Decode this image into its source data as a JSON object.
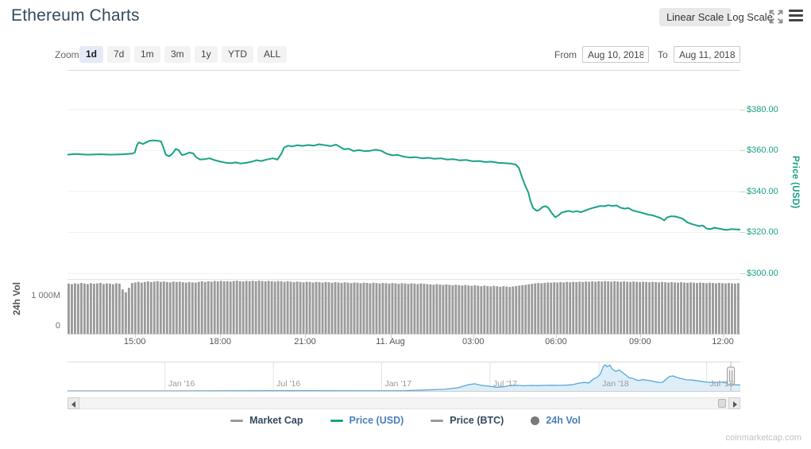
{
  "header": {
    "title": "Ethereum Charts",
    "linear_scale_label": "Linear Scale",
    "log_scale_label": "Log Scale"
  },
  "toolbar": {
    "zoom_label": "Zoom",
    "zoom_buttons": [
      {
        "label": "1d",
        "active": true
      },
      {
        "label": "7d",
        "active": false
      },
      {
        "label": "1m",
        "active": false
      },
      {
        "label": "3m",
        "active": false
      },
      {
        "label": "1y",
        "active": false
      },
      {
        "label": "YTD",
        "active": false
      },
      {
        "label": "ALL",
        "active": false
      }
    ],
    "from_label": "From",
    "from_value": "Aug 10, 2018",
    "to_label": "To",
    "to_value": "Aug 11, 2018"
  },
  "colors": {
    "price_line": "#18a286",
    "price_axis_text": "#16a085",
    "volume_bar": "#9b9b9b",
    "nav_line": "#58a7d8",
    "nav_fill": "#ddeef9",
    "grid": "#f2f2f2",
    "legend_active_text": "#4a7ebf",
    "legend_inactive_text": "#34495e",
    "title_text": "#34495e"
  },
  "chart_data": [
    {
      "type": "line",
      "name": "Price (USD)",
      "axis_title": "Price (USD)",
      "color": "#18a286",
      "ylim": [
        299.6,
        399.4
      ],
      "y_ticks": [
        {
          "value": 380,
          "label": "$380.00"
        },
        {
          "value": 360,
          "label": "$360.00"
        },
        {
          "value": 340,
          "label": "$340.00"
        },
        {
          "value": 320,
          "label": "$320.00"
        },
        {
          "value": 300,
          "label": "$300.00"
        }
      ],
      "x_ticks": [
        {
          "f": 0.1,
          "label": "15:00"
        },
        {
          "f": 0.227,
          "label": "18:00"
        },
        {
          "f": 0.353,
          "label": "21:00"
        },
        {
          "f": 0.48,
          "label": "11. Aug"
        },
        {
          "f": 0.603,
          "label": "03:00"
        },
        {
          "f": 0.726,
          "label": "06:00"
        },
        {
          "f": 0.851,
          "label": "09:00"
        },
        {
          "f": 0.974,
          "label": "12:00"
        }
      ],
      "points": [
        [
          0.0,
          358.0
        ],
        [
          0.012,
          358.3
        ],
        [
          0.03,
          358.0
        ],
        [
          0.047,
          358.2
        ],
        [
          0.065,
          358.0
        ],
        [
          0.083,
          358.2
        ],
        [
          0.096,
          358.5
        ],
        [
          0.1,
          359.0
        ],
        [
          0.103,
          362.5
        ],
        [
          0.106,
          364.0
        ],
        [
          0.112,
          363.2
        ],
        [
          0.117,
          364.0
        ],
        [
          0.122,
          364.8
        ],
        [
          0.128,
          365.0
        ],
        [
          0.133,
          364.8
        ],
        [
          0.139,
          364.5
        ],
        [
          0.143,
          361.0
        ],
        [
          0.146,
          358.0
        ],
        [
          0.151,
          357.2
        ],
        [
          0.156,
          358.5
        ],
        [
          0.161,
          360.8
        ],
        [
          0.165,
          360.2
        ],
        [
          0.17,
          357.8
        ],
        [
          0.175,
          358.2
        ],
        [
          0.181,
          359.0
        ],
        [
          0.187,
          358.6
        ],
        [
          0.191,
          356.8
        ],
        [
          0.197,
          355.6
        ],
        [
          0.204,
          355.8
        ],
        [
          0.211,
          356.2
        ],
        [
          0.218,
          355.4
        ],
        [
          0.227,
          354.6
        ],
        [
          0.235,
          354.1
        ],
        [
          0.243,
          353.8
        ],
        [
          0.25,
          354.2
        ],
        [
          0.257,
          353.7
        ],
        [
          0.266,
          354.0
        ],
        [
          0.274,
          354.6
        ],
        [
          0.281,
          355.3
        ],
        [
          0.288,
          354.9
        ],
        [
          0.296,
          355.6
        ],
        [
          0.305,
          356.2
        ],
        [
          0.312,
          355.6
        ],
        [
          0.318,
          358.5
        ],
        [
          0.322,
          361.5
        ],
        [
          0.328,
          362.4
        ],
        [
          0.334,
          362.0
        ],
        [
          0.341,
          362.6
        ],
        [
          0.349,
          362.3
        ],
        [
          0.358,
          362.7
        ],
        [
          0.366,
          362.4
        ],
        [
          0.374,
          363.1
        ],
        [
          0.383,
          362.6
        ],
        [
          0.391,
          362.2
        ],
        [
          0.399,
          362.9
        ],
        [
          0.405,
          361.8
        ],
        [
          0.411,
          360.6
        ],
        [
          0.418,
          360.9
        ],
        [
          0.425,
          359.8
        ],
        [
          0.433,
          360.2
        ],
        [
          0.442,
          359.7
        ],
        [
          0.45,
          359.9
        ],
        [
          0.458,
          360.4
        ],
        [
          0.466,
          359.9
        ],
        [
          0.475,
          358.4
        ],
        [
          0.483,
          357.7
        ],
        [
          0.491,
          357.9
        ],
        [
          0.499,
          357.1
        ],
        [
          0.508,
          356.6
        ],
        [
          0.517,
          356.8
        ],
        [
          0.527,
          356.2
        ],
        [
          0.536,
          356.5
        ],
        [
          0.545,
          356.0
        ],
        [
          0.555,
          356.2
        ],
        [
          0.564,
          355.6
        ],
        [
          0.574,
          355.8
        ],
        [
          0.583,
          355.2
        ],
        [
          0.593,
          355.4
        ],
        [
          0.602,
          354.8
        ],
        [
          0.612,
          354.9
        ],
        [
          0.621,
          354.4
        ],
        [
          0.63,
          354.6
        ],
        [
          0.64,
          354.0
        ],
        [
          0.649,
          353.9
        ],
        [
          0.659,
          353.6
        ],
        [
          0.666,
          353.2
        ],
        [
          0.671,
          351.5
        ],
        [
          0.675,
          347.5
        ],
        [
          0.68,
          343.0
        ],
        [
          0.685,
          339.5
        ],
        [
          0.688,
          335.5
        ],
        [
          0.692,
          332.0
        ],
        [
          0.697,
          330.6
        ],
        [
          0.701,
          330.9
        ],
        [
          0.706,
          332.4
        ],
        [
          0.711,
          332.8
        ],
        [
          0.715,
          331.9
        ],
        [
          0.72,
          329.4
        ],
        [
          0.725,
          327.4
        ],
        [
          0.73,
          328.4
        ],
        [
          0.734,
          329.6
        ],
        [
          0.739,
          330.1
        ],
        [
          0.745,
          330.5
        ],
        [
          0.751,
          330.0
        ],
        [
          0.757,
          330.4
        ],
        [
          0.763,
          329.9
        ],
        [
          0.769,
          330.6
        ],
        [
          0.774,
          331.3
        ],
        [
          0.78,
          331.9
        ],
        [
          0.786,
          332.4
        ],
        [
          0.792,
          332.9
        ],
        [
          0.798,
          332.8
        ],
        [
          0.804,
          333.3
        ],
        [
          0.81,
          332.9
        ],
        [
          0.816,
          333.2
        ],
        [
          0.822,
          332.1
        ],
        [
          0.828,
          331.6
        ],
        [
          0.834,
          331.9
        ],
        [
          0.839,
          330.9
        ],
        [
          0.845,
          330.3
        ],
        [
          0.851,
          329.8
        ],
        [
          0.857,
          329.3
        ],
        [
          0.863,
          328.7
        ],
        [
          0.869,
          328.4
        ],
        [
          0.875,
          327.8
        ],
        [
          0.881,
          327.1
        ],
        [
          0.887,
          325.9
        ],
        [
          0.891,
          327.3
        ],
        [
          0.897,
          327.9
        ],
        [
          0.903,
          327.8
        ],
        [
          0.909,
          327.3
        ],
        [
          0.915,
          326.6
        ],
        [
          0.921,
          324.9
        ],
        [
          0.927,
          324.2
        ],
        [
          0.933,
          323.6
        ],
        [
          0.939,
          323.1
        ],
        [
          0.944,
          323.4
        ],
        [
          0.95,
          321.9
        ],
        [
          0.956,
          321.6
        ],
        [
          0.962,
          322.3
        ],
        [
          0.968,
          321.9
        ],
        [
          0.974,
          321.5
        ],
        [
          0.98,
          321.2
        ],
        [
          0.986,
          321.6
        ],
        [
          0.993,
          321.5
        ],
        [
          1.0,
          321.4
        ]
      ]
    },
    {
      "type": "bar",
      "name": "24h Vol",
      "axis_title": "24h Vol",
      "color": "#9b9b9b",
      "unit": "millions USD",
      "y_ticks": [
        {
          "value": 1000,
          "label": "1 000M"
        },
        {
          "value": 0,
          "label": "0"
        }
      ],
      "values": [
        1405,
        1388,
        1412,
        1396,
        1420,
        1402,
        1390,
        1416,
        1398,
        1408,
        1422,
        1392,
        1410,
        1400,
        1385,
        1412,
        1402,
        1240,
        1160,
        1285,
        1418,
        1436,
        1452,
        1430,
        1448,
        1465,
        1444,
        1458,
        1472,
        1452,
        1462,
        1446,
        1438,
        1460,
        1448,
        1456,
        1442,
        1432,
        1446,
        1436,
        1428,
        1452,
        1466,
        1450,
        1470,
        1455,
        1478,
        1462,
        1480,
        1465,
        1472,
        1458,
        1476,
        1484,
        1470,
        1462,
        1478,
        1468,
        1482,
        1472,
        1486,
        1476,
        1464,
        1480,
        1470,
        1458,
        1474,
        1466,
        1452,
        1468,
        1456,
        1444,
        1460,
        1450,
        1438,
        1454,
        1446,
        1434,
        1450,
        1442,
        1430,
        1446,
        1438,
        1426,
        1442,
        1434,
        1422,
        1438,
        1430,
        1418,
        1434,
        1426,
        1414,
        1430,
        1422,
        1410,
        1426,
        1418,
        1406,
        1422,
        1414,
        1402,
        1418,
        1410,
        1398,
        1414,
        1406,
        1394,
        1410,
        1402,
        1390,
        1406,
        1398,
        1386,
        1380,
        1372,
        1388,
        1376,
        1364,
        1380,
        1368,
        1356,
        1372,
        1360,
        1348,
        1364,
        1352,
        1340,
        1356,
        1344,
        1332,
        1348,
        1336,
        1324,
        1340,
        1328,
        1316,
        1332,
        1320,
        1308,
        1324,
        1336,
        1348,
        1360,
        1372,
        1384,
        1396,
        1408,
        1420,
        1412,
        1424,
        1436,
        1428,
        1440,
        1432,
        1444,
        1436,
        1448,
        1440,
        1452,
        1444,
        1456,
        1448,
        1460,
        1452,
        1464,
        1456,
        1468,
        1460,
        1472,
        1464,
        1456,
        1468,
        1460,
        1452,
        1464,
        1456,
        1448,
        1460,
        1452,
        1444,
        1456,
        1448,
        1440,
        1452,
        1444,
        1436,
        1448,
        1440,
        1432,
        1444,
        1436,
        1428,
        1440,
        1432,
        1424,
        1436,
        1428,
        1420,
        1432,
        1424,
        1416,
        1428,
        1420,
        1412,
        1424,
        1416,
        1408,
        1420,
        1412,
        1404,
        1416
      ]
    },
    {
      "type": "area",
      "name": "Navigator (Price USD history)",
      "color": "#58a7d8",
      "fill": "#ddeef9",
      "ymax": 1400,
      "x_ticks": [
        {
          "f": 0.145,
          "label": "Jan '16"
        },
        {
          "f": 0.306,
          "label": "Jul '16"
        },
        {
          "f": 0.467,
          "label": "Jan '17"
        },
        {
          "f": 0.628,
          "label": "Jul '17"
        },
        {
          "f": 0.79,
          "label": "Jan '18"
        },
        {
          "f": 0.95,
          "label": "Jul '18"
        }
      ],
      "handle_f": 0.986,
      "points": [
        [
          0.0,
          1
        ],
        [
          0.05,
          1
        ],
        [
          0.1,
          1
        ],
        [
          0.145,
          1
        ],
        [
          0.2,
          5
        ],
        [
          0.25,
          8
        ],
        [
          0.306,
          12
        ],
        [
          0.36,
          12
        ],
        [
          0.42,
          9
        ],
        [
          0.467,
          8
        ],
        [
          0.5,
          15
        ],
        [
          0.53,
          50
        ],
        [
          0.56,
          90
        ],
        [
          0.58,
          170
        ],
        [
          0.595,
          330
        ],
        [
          0.605,
          385
        ],
        [
          0.615,
          300
        ],
        [
          0.628,
          250
        ],
        [
          0.638,
          200
        ],
        [
          0.648,
          225
        ],
        [
          0.658,
          295
        ],
        [
          0.668,
          300
        ],
        [
          0.678,
          280
        ],
        [
          0.69,
          295
        ],
        [
          0.7,
          290
        ],
        [
          0.71,
          300
        ],
        [
          0.72,
          305
        ],
        [
          0.73,
          300
        ],
        [
          0.74,
          310
        ],
        [
          0.75,
          330
        ],
        [
          0.76,
          420
        ],
        [
          0.768,
          460
        ],
        [
          0.775,
          430
        ],
        [
          0.782,
          650
        ],
        [
          0.788,
          750
        ],
        [
          0.792,
          900
        ],
        [
          0.796,
          1280
        ],
        [
          0.799,
          1400
        ],
        [
          0.802,
          1300
        ],
        [
          0.806,
          1380
        ],
        [
          0.81,
          1150
        ],
        [
          0.815,
          1050
        ],
        [
          0.82,
          1120
        ],
        [
          0.825,
          980
        ],
        [
          0.83,
          850
        ],
        [
          0.835,
          700
        ],
        [
          0.84,
          680
        ],
        [
          0.845,
          590
        ],
        [
          0.85,
          560
        ],
        [
          0.855,
          610
        ],
        [
          0.86,
          580
        ],
        [
          0.865,
          560
        ],
        [
          0.87,
          520
        ],
        [
          0.875,
          480
        ],
        [
          0.88,
          450
        ],
        [
          0.885,
          470
        ],
        [
          0.89,
          640
        ],
        [
          0.895,
          780
        ],
        [
          0.9,
          800
        ],
        [
          0.905,
          740
        ],
        [
          0.91,
          680
        ],
        [
          0.915,
          640
        ],
        [
          0.92,
          600
        ],
        [
          0.93,
          580
        ],
        [
          0.94,
          520
        ],
        [
          0.95,
          470
        ],
        [
          0.96,
          450
        ],
        [
          0.97,
          470
        ],
        [
          0.975,
          455
        ],
        [
          0.98,
          430
        ],
        [
          0.985,
          410
        ],
        [
          0.99,
          340
        ],
        [
          0.995,
          330
        ],
        [
          1.0,
          320
        ]
      ]
    }
  ],
  "legend": {
    "items": [
      {
        "label": "Market Cap",
        "marker": "dash",
        "marker_color": "#9a9a9a",
        "text_color": "#34495e"
      },
      {
        "label": "Price (USD)",
        "marker": "dash",
        "marker_color": "#18a286",
        "text_color": "#4a7ebf"
      },
      {
        "label": "Price (BTC)",
        "marker": "dash",
        "marker_color": "#9a9a9a",
        "text_color": "#34495e"
      },
      {
        "label": "24h Vol",
        "marker": "circle",
        "marker_color": "#7a7a7a",
        "text_color": "#4a7ebf"
      }
    ]
  },
  "watermark": "coinmarketcap.com"
}
